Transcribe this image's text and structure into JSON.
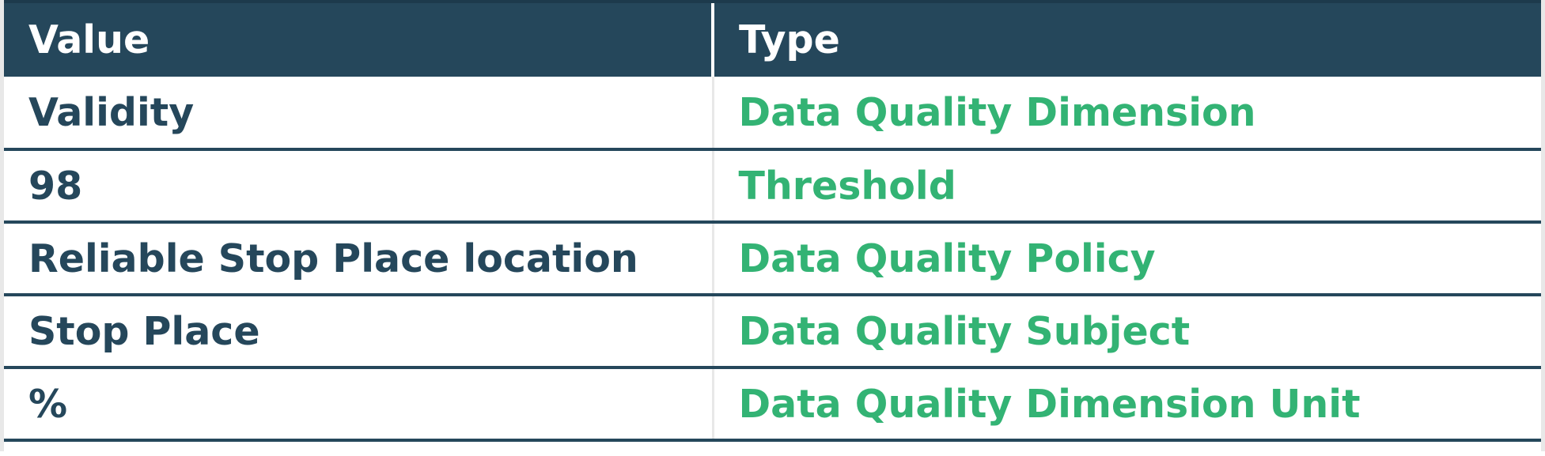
{
  "table": {
    "headers": [
      "Value",
      "Type"
    ],
    "rows": [
      {
        "value": "Validity",
        "type": "Data Quality Dimension"
      },
      {
        "value": "98",
        "type": "Threshold"
      },
      {
        "value": "Reliable Stop Place location",
        "type": "Data Quality Policy"
      },
      {
        "value": "Stop Place",
        "type": "Data Quality Subject"
      },
      {
        "value": "%",
        "type": "Data Quality Dimension Unit"
      }
    ]
  },
  "colors": {
    "header_bg": "#25475b",
    "value_text": "#25475b",
    "type_text": "#33b374"
  }
}
